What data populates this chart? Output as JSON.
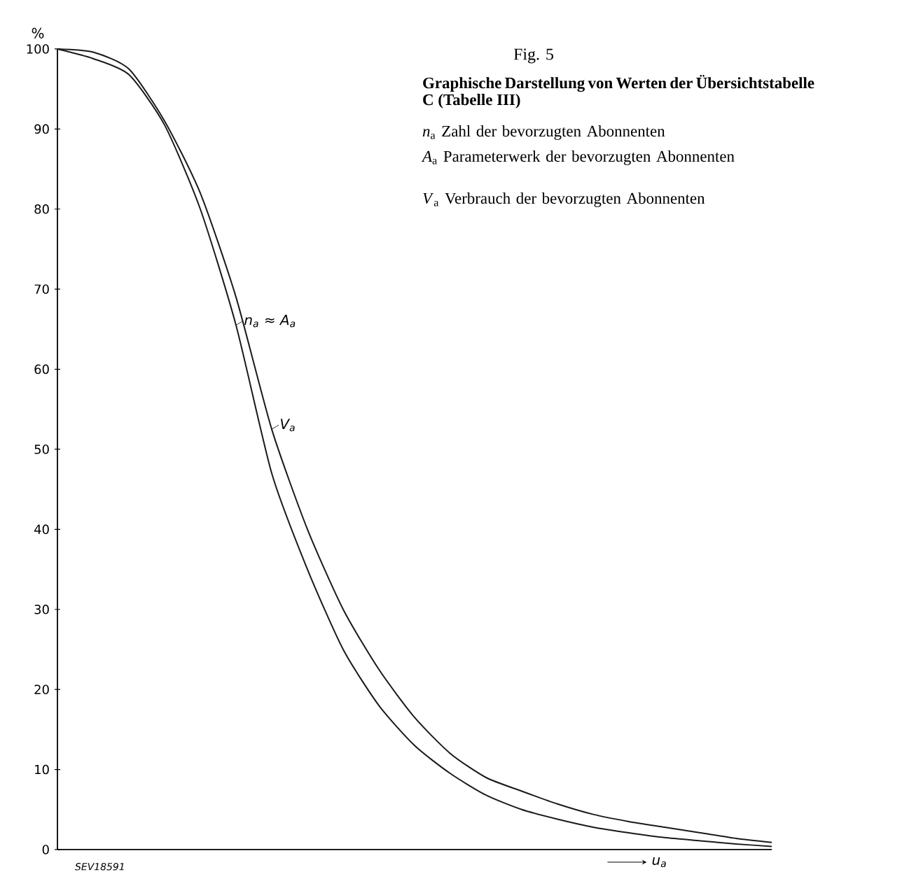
{
  "chart_data": {
    "type": "line",
    "title": "Graphische Darstellung von Werten der Übersichtstabelle C (Tabelle III)",
    "subtitle": "Fig. 5",
    "ylabel": "%",
    "xlabel": "u$_{a}$",
    "categories": [
      null,
      null,
      null,
      null,
      null,
      null,
      null,
      null,
      null,
      null,
      null,
      null,
      null,
      null,
      null,
      null,
      null,
      null,
      null,
      null,
      null
    ],
    "series": [
      {
        "name": "n$_{a}$ ≈ A$_{a}$",
        "color": "#1a1a1a",
        "values": [
          100,
          98.8,
          96.8,
          90.5,
          80,
          65.5,
          47,
          35,
          25,
          18,
          13,
          9.5,
          6.8,
          5,
          3.8,
          2.8,
          2.1,
          1.5,
          1.1,
          0.7,
          0.4
        ]
      },
      {
        "name": "V$_{a}$",
        "color": "#1a1a1a",
        "values": [
          100,
          99.6,
          97.5,
          91,
          82,
          69,
          52.5,
          40,
          30,
          22.5,
          16.5,
          12,
          9,
          7.3,
          5.7,
          4.4,
          3.5,
          2.8,
          2.1,
          1.4,
          0.9
        ]
      }
    ],
    "ylim": [
      0,
      100
    ],
    "yticks": [
      0,
      10,
      20,
      30,
      40,
      50,
      60,
      70,
      80,
      90,
      100
    ],
    "grid": false,
    "legend": false,
    "marker": "none",
    "line_style": "solid",
    "tick_labels": "y",
    "annotations": [
      "*n*$_{a}$  Zahl der bevorzugten Abonnenten",
      "*A*$_{a}$  Parameterwerk der bevorzugten Abonnenten",
      "*V*$_{a}$  Verbrauch der bevorzugten Abonnenten",
      "SEV18591"
    ]
  }
}
